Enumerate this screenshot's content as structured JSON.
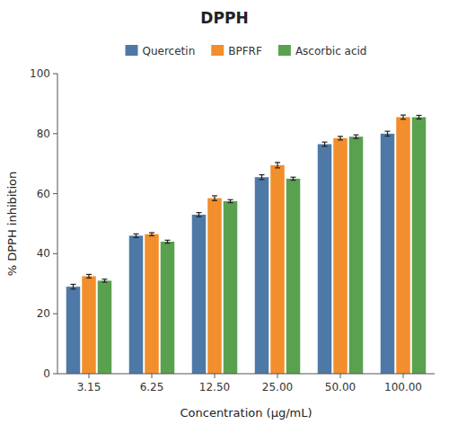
{
  "chart_data": {
    "type": "bar",
    "title": "DPPH",
    "xlabel": "Concentration (μg/mL)",
    "ylabel": "% DPPH inhibition",
    "categories": [
      "3.15",
      "6.25",
      "12.50",
      "25.00",
      "50.00",
      "100.00"
    ],
    "series": [
      {
        "name": "Quercetin",
        "values": [
          29.0,
          46.0,
          53.0,
          65.5,
          76.5,
          80.0
        ],
        "errors": [
          0.8,
          0.6,
          0.7,
          0.8,
          0.7,
          0.8
        ]
      },
      {
        "name": "BPFRF",
        "values": [
          32.5,
          46.5,
          58.5,
          69.5,
          78.5,
          85.5
        ],
        "errors": [
          0.6,
          0.5,
          0.8,
          0.9,
          0.6,
          0.7
        ]
      },
      {
        "name": "Ascorbic acid",
        "values": [
          31.0,
          44.0,
          57.5,
          65.0,
          79.0,
          85.5
        ],
        "errors": [
          0.5,
          0.5,
          0.5,
          0.5,
          0.6,
          0.6
        ]
      }
    ],
    "ylim": [
      0,
      100
    ],
    "yticks": [
      0,
      20,
      40,
      60,
      80,
      100
    ],
    "grid": false,
    "legend": "top"
  }
}
